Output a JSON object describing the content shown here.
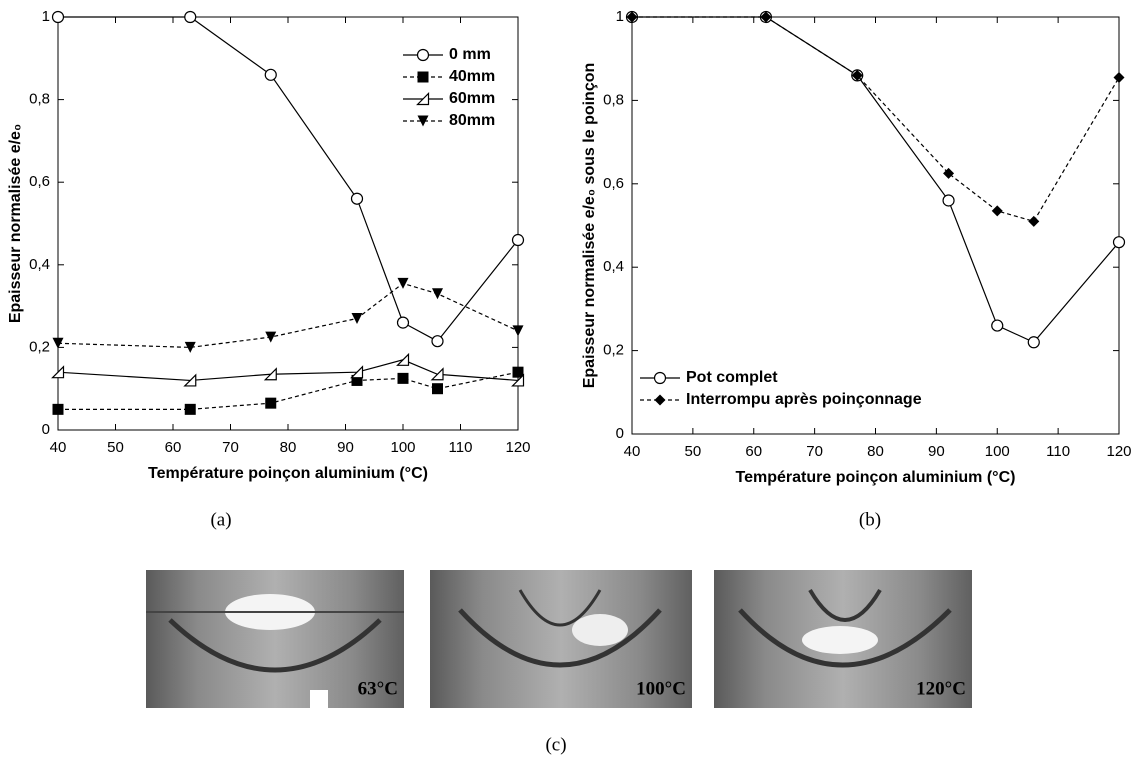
{
  "chart_data": [
    {
      "type": "line",
      "x_label": "Température poinçon aluminium (°C)",
      "y_label": "Epaisseur normalisée e/e₀",
      "x": [
        40,
        63,
        77,
        92,
        100,
        106,
        120
      ],
      "xlim": [
        40,
        120
      ],
      "xticks": [
        40,
        50,
        60,
        70,
        80,
        90,
        100,
        110,
        120
      ],
      "ylim": [
        0,
        1
      ],
      "yticks": [
        0,
        {
          "value": 0.2,
          "label": "0,2"
        },
        {
          "value": 0.4,
          "label": "0,4"
        },
        {
          "value": 0.6,
          "label": "0,6"
        },
        {
          "value": 0.8,
          "label": "0,8"
        },
        1
      ],
      "legend": "upper right",
      "series": [
        {
          "name": "0 mm",
          "color": "#000000",
          "marker": "circle-open",
          "dashed": false,
          "values": [
            1,
            1,
            0.86,
            0.56,
            0.26,
            0.215,
            0.46
          ]
        },
        {
          "name": "40mm",
          "color": "#000000",
          "marker": "square",
          "dashed": true,
          "values": [
            0.05,
            0.05,
            0.065,
            0.12,
            0.125,
            0.1,
            0.14
          ]
        },
        {
          "name": "60mm",
          "color": "#000000",
          "marker": "triangle-open",
          "dashed": false,
          "values": [
            0.14,
            0.12,
            0.135,
            0.14,
            0.17,
            0.135,
            0.12
          ]
        },
        {
          "name": "80mm",
          "color": "#000000",
          "marker": "triangle-down",
          "dashed": true,
          "values": [
            0.21,
            0.2,
            0.225,
            0.27,
            0.355,
            0.33,
            0.24
          ]
        }
      ]
    },
    {
      "type": "line",
      "x_label": "Température poinçon aluminium (°C)",
      "y_label": "Epaisseur normalisée e/e₀ sous le poinçon",
      "x": [
        40,
        62,
        77,
        92,
        100,
        106,
        120
      ],
      "xlim": [
        40,
        120
      ],
      "xticks": [
        40,
        50,
        60,
        70,
        80,
        90,
        100,
        110,
        120
      ],
      "ylim": [
        0,
        1
      ],
      "yticks": [
        0,
        {
          "value": 0.2,
          "label": "0,2"
        },
        {
          "value": 0.4,
          "label": "0,4"
        },
        {
          "value": 0.6,
          "label": "0,6"
        },
        {
          "value": 0.8,
          "label": "0,8"
        },
        1
      ],
      "legend": "lower left",
      "series": [
        {
          "name": "Pot complet",
          "color": "#000000",
          "marker": "circle-open",
          "dashed": false,
          "values": [
            1,
            1,
            0.86,
            0.56,
            0.26,
            0.22,
            0.46
          ]
        },
        {
          "name": "Interrompu après poinçonnage",
          "color": "#000000",
          "marker": "diamond",
          "dashed": true,
          "values": [
            1,
            1,
            0.86,
            0.625,
            0.535,
            0.51,
            0.855
          ]
        }
      ]
    }
  ],
  "captions": [
    "(a)",
    "(b)",
    "(c)"
  ],
  "photos": [
    {
      "label": "63°C"
    },
    {
      "label": "100°C"
    },
    {
      "label": "120°C"
    }
  ]
}
